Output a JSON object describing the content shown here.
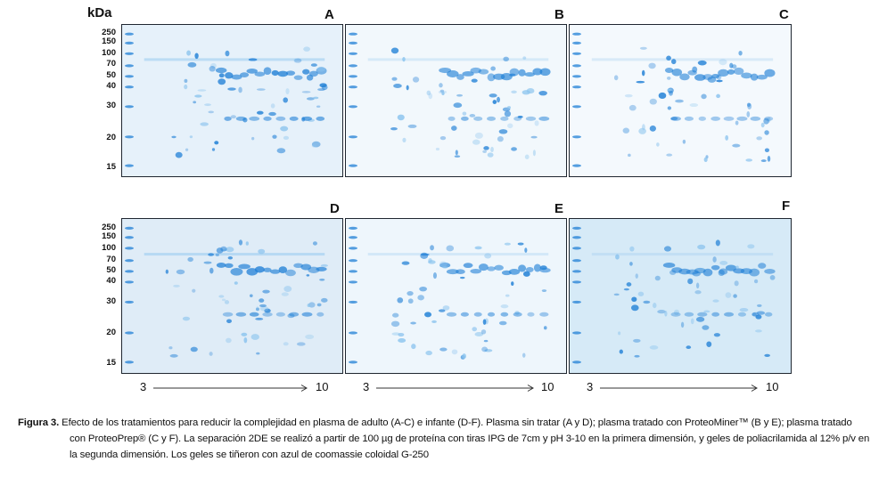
{
  "axis_unit": "kDa",
  "mw_markers": [
    "250",
    "150",
    "100",
    "70",
    "50",
    "40",
    "30",
    "20",
    "15"
  ],
  "panels": [
    {
      "letter": "A",
      "tone": "#e6f1fa"
    },
    {
      "letter": "B",
      "tone": "#f2f8fc"
    },
    {
      "letter": "C",
      "tone": "#f4f9fd"
    },
    {
      "letter": "D",
      "tone": "#dfecf7"
    },
    {
      "letter": "E",
      "tone": "#eef6fc"
    },
    {
      "letter": "F",
      "tone": "#d6eaf7"
    }
  ],
  "ph_start": "3",
  "ph_end": "10",
  "caption": {
    "label": "Figura 3.",
    "line1": "Efecto de los tratamientos para reducir la complejidad en plasma de adulto (A-C) e infante (D-F). Plasma sin tratar (A y D); plasma tratado con ProteoMiner™ (B y E); plasma tratado",
    "line2": "con ProteoPrep® (C y F). La separación 2DE se realizó a partir de 100 µg de proteína con tiras IPG de 7cm y pH 3-10 en la primera dimensión, y geles de poliacrilamida al 12% p/v en",
    "line3": "la segunda dimensión. Los geles se tiñeron con azul de coomassie coloidal G-250"
  },
  "colors": {
    "stain": "#1f7fd6",
    "stain_light": "#8cc4ee",
    "frame": "#1f2630"
  }
}
